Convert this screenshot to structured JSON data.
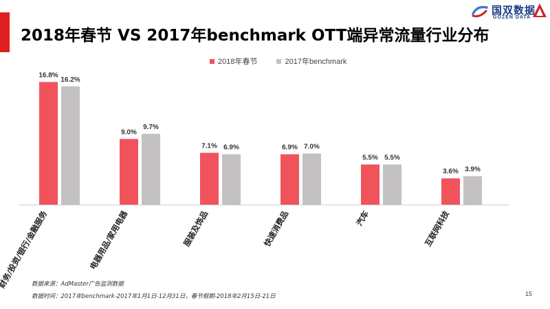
{
  "header": {
    "title": "2018年春节  VS  2017年benchmark  OTT端异常流量行业分布",
    "accent_color": "#e02020"
  },
  "logo": {
    "name": "国双数据",
    "sub": "GOZEN DATA",
    "icon": "logo-swirl-icon",
    "triangle_icon": "triangle-icon",
    "name_color": "#1c3e86",
    "triangle_color": "#c7282c"
  },
  "chart_data": {
    "type": "bar",
    "title": "2018年春节 VS 2017年benchmark OTT端异常流量行业分布",
    "categories": [
      "财务/投资/银行/金融服务",
      "电器用品/家用电器",
      "服装及饰品",
      "快速消费品",
      "汽车",
      "互联网科技"
    ],
    "series": [
      {
        "name": "2018年春节",
        "values": [
          16.8,
          9.0,
          7.1,
          6.9,
          5.5,
          3.6
        ],
        "labels": [
          "16.8%",
          "9.0%",
          "7.1%",
          "6.9%",
          "5.5%",
          "3.6%"
        ],
        "color": "#f0535c"
      },
      {
        "name": "2017年benchmark",
        "values": [
          16.2,
          9.7,
          6.9,
          7.0,
          5.5,
          3.9
        ],
        "labels": [
          "16.2%",
          "9.7%",
          "6.9%",
          "7.0%",
          "5.5%",
          "3.9%"
        ],
        "color": "#c3c1c1"
      }
    ],
    "unit": "%",
    "ylim": [
      0,
      17.5
    ],
    "xlabel": "",
    "ylabel": "",
    "grid": false,
    "legend_position": "top-center"
  },
  "footnotes": {
    "source": "数据来源：AdMaster广告监测数据",
    "period": "数据时间：2017年benchmark-2017年1月1日-12月31日，春节假期-2018年2月15日-21日"
  },
  "page_number": "15"
}
